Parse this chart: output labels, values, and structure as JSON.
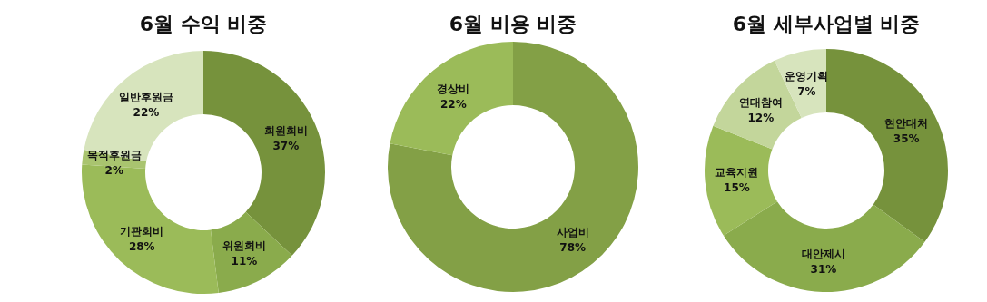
{
  "chart_data": [
    {
      "type": "donut",
      "title": "6월 수익 비중",
      "categories": [
        "회원회비",
        "위원회비",
        "기관회비",
        "목적후원금",
        "일반후원금"
      ],
      "values": [
        37,
        11,
        28,
        2,
        22
      ],
      "value_labels": [
        "37%",
        "11%",
        "28%",
        "2%",
        "22%"
      ],
      "colors": [
        "#76923c",
        "#8aab4c",
        "#9bbb59",
        "#a9c46f",
        "#d7e4bd"
      ]
    },
    {
      "type": "donut",
      "title": "6월 비용 비중",
      "categories": [
        "사업비",
        "경상비"
      ],
      "values": [
        78,
        22
      ],
      "value_labels": [
        "78%",
        "22%"
      ],
      "colors": [
        "#83a046",
        "#9bbb59"
      ]
    },
    {
      "type": "donut",
      "title": "6월 세부사업별 비중",
      "categories": [
        "현안대처",
        "대안제시",
        "교육지원",
        "연대참여",
        "운영기획"
      ],
      "values": [
        35,
        31,
        15,
        12,
        7
      ],
      "value_labels": [
        "35%",
        "31%",
        "15%",
        "12%",
        "7%"
      ],
      "colors": [
        "#76923c",
        "#8aab4c",
        "#9bbb59",
        "#c3d69b",
        "#d7e4bd"
      ]
    }
  ]
}
